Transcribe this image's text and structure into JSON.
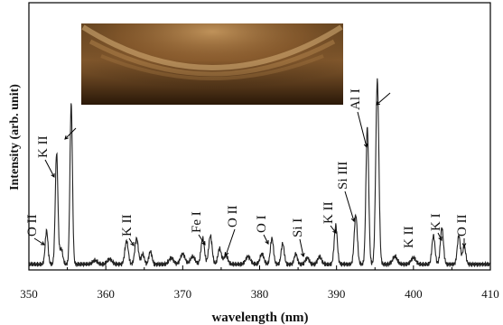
{
  "chart_data": {
    "type": "line",
    "title": "",
    "xlabel": "wavelength (nm)",
    "ylabel": "Intensity (arb. unit)",
    "xlim": [
      350,
      410
    ],
    "ylim": [
      0,
      1
    ],
    "y_ticks_shown": false,
    "x_ticks": [
      350,
      360,
      370,
      380,
      390,
      400,
      410
    ],
    "x_tick_labels": [
      "350",
      "360",
      "370",
      "380",
      "390",
      "400",
      "410"
    ],
    "baseline": 0.015,
    "peaks": [
      {
        "x": 352.3,
        "y": 0.13,
        "w": 0.18
      },
      {
        "x": 353.6,
        "y": 0.43,
        "w": 0.17
      },
      {
        "x": 354.2,
        "y": 0.06,
        "w": 0.2
      },
      {
        "x": 355.5,
        "y": 0.62,
        "w": 0.16
      },
      {
        "x": 358.6,
        "y": 0.015,
        "w": 0.3
      },
      {
        "x": 360.5,
        "y": 0.02,
        "w": 0.3
      },
      {
        "x": 362.7,
        "y": 0.09,
        "w": 0.22
      },
      {
        "x": 364.0,
        "y": 0.1,
        "w": 0.22
      },
      {
        "x": 364.8,
        "y": 0.04,
        "w": 0.2
      },
      {
        "x": 365.8,
        "y": 0.05,
        "w": 0.2
      },
      {
        "x": 368.5,
        "y": 0.025,
        "w": 0.3
      },
      {
        "x": 370.0,
        "y": 0.04,
        "w": 0.3
      },
      {
        "x": 371.3,
        "y": 0.03,
        "w": 0.3
      },
      {
        "x": 372.6,
        "y": 0.1,
        "w": 0.22
      },
      {
        "x": 373.6,
        "y": 0.11,
        "w": 0.22
      },
      {
        "x": 374.8,
        "y": 0.06,
        "w": 0.22
      },
      {
        "x": 375.6,
        "y": 0.035,
        "w": 0.25
      },
      {
        "x": 378.5,
        "y": 0.03,
        "w": 0.3
      },
      {
        "x": 380.3,
        "y": 0.04,
        "w": 0.25
      },
      {
        "x": 381.6,
        "y": 0.1,
        "w": 0.2
      },
      {
        "x": 383.0,
        "y": 0.08,
        "w": 0.2
      },
      {
        "x": 384.7,
        "y": 0.04,
        "w": 0.2
      },
      {
        "x": 386.2,
        "y": 0.025,
        "w": 0.25
      },
      {
        "x": 387.8,
        "y": 0.03,
        "w": 0.25
      },
      {
        "x": 389.9,
        "y": 0.15,
        "w": 0.2
      },
      {
        "x": 392.5,
        "y": 0.19,
        "w": 0.2
      },
      {
        "x": 394.0,
        "y": 0.53,
        "w": 0.18
      },
      {
        "x": 395.3,
        "y": 0.71,
        "w": 0.2
      },
      {
        "x": 397.6,
        "y": 0.03,
        "w": 0.3
      },
      {
        "x": 400.0,
        "y": 0.025,
        "w": 0.3
      },
      {
        "x": 402.6,
        "y": 0.11,
        "w": 0.2
      },
      {
        "x": 403.7,
        "y": 0.14,
        "w": 0.2
      },
      {
        "x": 405.9,
        "y": 0.11,
        "w": 0.2
      },
      {
        "x": 406.6,
        "y": 0.07,
        "w": 0.2
      }
    ],
    "annotations": [
      {
        "id": "o2-352",
        "text": "O II",
        "x": 352.3,
        "y": 0.13
      },
      {
        "id": "k2-353",
        "text": "K II",
        "x": 353.6,
        "y": 0.43
      },
      {
        "id": "peak-355",
        "text": "",
        "x": 355.5,
        "y": 0.62
      },
      {
        "id": "k2-364",
        "text": "K II",
        "x": 364.0,
        "y": 0.1
      },
      {
        "id": "fe1-373",
        "text": "Fe I",
        "x": 373.0,
        "y": 0.11
      },
      {
        "id": "o2-375",
        "text": "O II",
        "x": 375.6,
        "y": 0.05
      },
      {
        "id": "o1-381",
        "text": "O I",
        "x": 381.6,
        "y": 0.1
      },
      {
        "id": "si1-384",
        "text": "Si I",
        "x": 384.7,
        "y": 0.04
      },
      {
        "id": "k2-390",
        "text": "K II",
        "x": 389.9,
        "y": 0.15
      },
      {
        "id": "si3-392",
        "text": "Si III",
        "x": 392.5,
        "y": 0.19
      },
      {
        "id": "al1-394",
        "text": "Al I",
        "x": 394.0,
        "y": 0.53
      },
      {
        "id": "peak-395",
        "text": "",
        "x": 395.3,
        "y": 0.71
      },
      {
        "id": "k2-400",
        "text": "K II",
        "x": 400.0,
        "y": 0.025
      },
      {
        "id": "k1-403",
        "text": "K I",
        "x": 403.2,
        "y": 0.14
      },
      {
        "id": "o2-406",
        "text": "O II",
        "x": 406.4,
        "y": 0.11
      }
    ],
    "inset": {
      "kind": "plasma-photo",
      "colors": [
        "#3a2410",
        "#8a5a2a",
        "#b98d55"
      ]
    },
    "line_color": "#222222",
    "grid": false
  }
}
